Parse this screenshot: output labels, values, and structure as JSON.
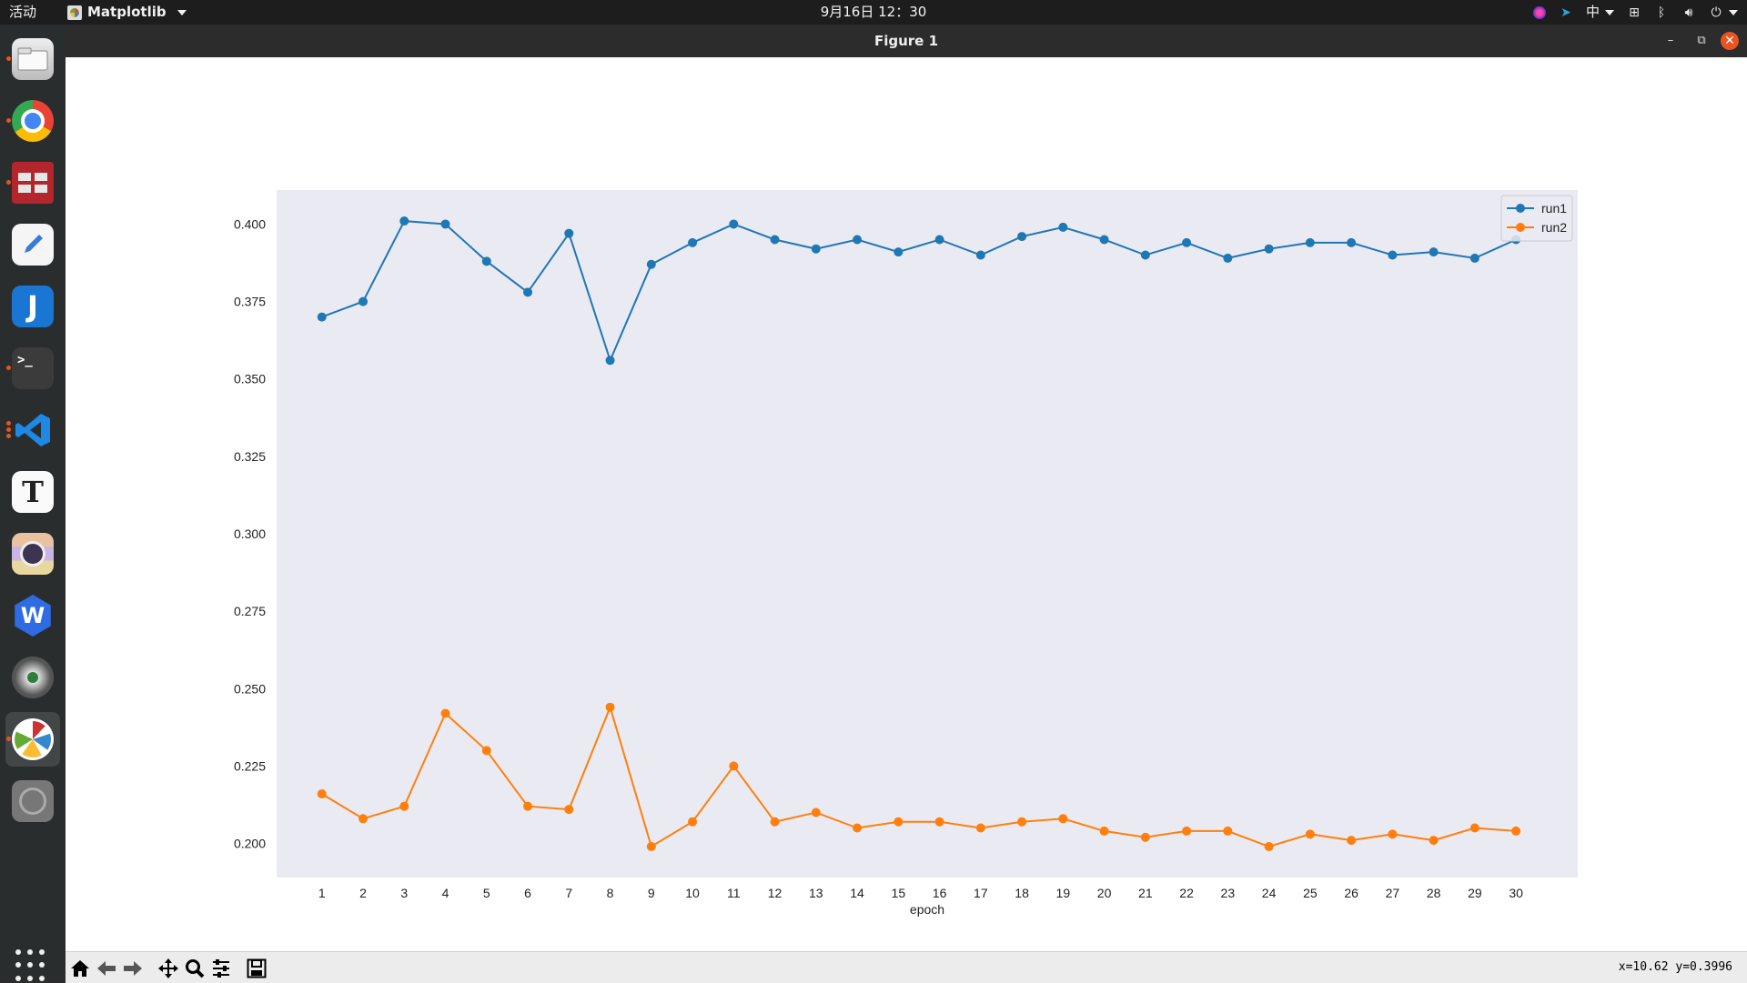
{
  "topbar": {
    "activities": "活动",
    "app_name": "Matplotlib",
    "clock": "9月16日  12：30",
    "input_method": "中"
  },
  "dock": {
    "items": [
      {
        "name": "files",
        "icon": "files-icon",
        "running": true
      },
      {
        "name": "chrome",
        "icon": "chrome-icon",
        "running": true
      },
      {
        "name": "terminal-red",
        "icon": "terminal-red-icon",
        "running": true
      },
      {
        "name": "text-editor",
        "icon": "text-editor-icon",
        "running": false
      },
      {
        "name": "jd",
        "icon": "j-icon",
        "running": false
      },
      {
        "name": "terminal",
        "icon": "terminal-icon",
        "running": true
      },
      {
        "name": "vscode",
        "icon": "vscode-icon",
        "running": true
      },
      {
        "name": "typora",
        "icon": "t-icon",
        "running": false
      },
      {
        "name": "camera",
        "icon": "camera-icon",
        "running": false
      },
      {
        "name": "wps",
        "icon": "wps-icon",
        "running": false
      },
      {
        "name": "eye",
        "icon": "eye-icon",
        "running": false
      },
      {
        "name": "matplotlib",
        "icon": "matplotlib-icon",
        "running": true,
        "active": true
      },
      {
        "name": "disk",
        "icon": "disk-icon",
        "running": false
      }
    ]
  },
  "window": {
    "title": "Figure 1",
    "coords": "x=10.62 y=0.3996"
  },
  "toolbar": {
    "tools": [
      "home-icon",
      "back-icon",
      "forward-icon",
      "pan-icon",
      "zoom-icon",
      "configure-icon",
      "save-icon"
    ]
  },
  "colors": {
    "axes_bg": "#eaeaf2",
    "run1": "#1f77b4",
    "run2": "#ff7f0e"
  },
  "chart_data": {
    "type": "line",
    "x": [
      1,
      2,
      3,
      4,
      5,
      6,
      7,
      8,
      9,
      10,
      11,
      12,
      13,
      14,
      15,
      16,
      17,
      18,
      19,
      20,
      21,
      22,
      23,
      24,
      25,
      26,
      27,
      28,
      29,
      30
    ],
    "xlabel": "epoch",
    "ylabel": "",
    "title": "",
    "ylim": [
      0.189,
      0.411
    ],
    "xlim": [
      -0.1,
      31.5
    ],
    "yticks": [
      0.2,
      0.225,
      0.25,
      0.275,
      0.3,
      0.325,
      0.35,
      0.375,
      0.4
    ],
    "ytick_labels": [
      "0.200",
      "0.225",
      "0.250",
      "0.275",
      "0.300",
      "0.325",
      "0.350",
      "0.375",
      "0.400"
    ],
    "grid": false,
    "legend_loc": "upper right",
    "marker": "o",
    "series": [
      {
        "name": "run1",
        "values": [
          0.37,
          0.375,
          0.401,
          0.4,
          0.388,
          0.378,
          0.397,
          0.356,
          0.387,
          0.394,
          0.4,
          0.395,
          0.392,
          0.395,
          0.391,
          0.395,
          0.39,
          0.396,
          0.399,
          0.395,
          0.39,
          0.394,
          0.389,
          0.392,
          0.394,
          0.394,
          0.39,
          0.391,
          0.389,
          0.395
        ]
      },
      {
        "name": "run2",
        "values": [
          0.216,
          0.208,
          0.212,
          0.242,
          0.23,
          0.212,
          0.211,
          0.244,
          0.199,
          0.207,
          0.225,
          0.207,
          0.21,
          0.205,
          0.207,
          0.207,
          0.205,
          0.207,
          0.208,
          0.204,
          0.202,
          0.204,
          0.204,
          0.199,
          0.203,
          0.201,
          0.203,
          0.201,
          0.205,
          0.204
        ]
      }
    ]
  }
}
